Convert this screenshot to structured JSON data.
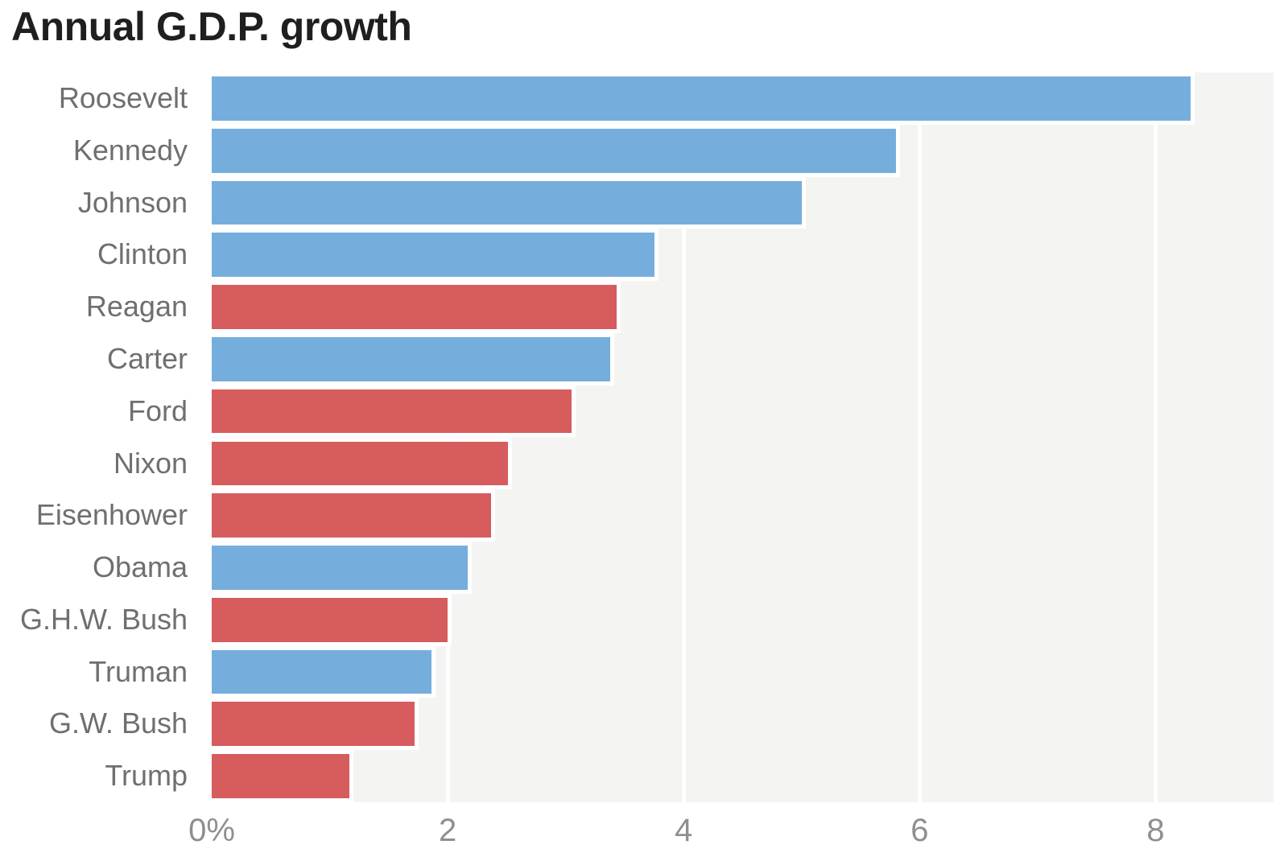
{
  "chart_data": {
    "type": "bar",
    "orientation": "horizontal",
    "title": "Annual G.D.P. growth",
    "value_unit": "percent (average annual G.D.P. growth)",
    "categories": [
      "Roosevelt",
      "Kennedy",
      "Johnson",
      "Clinton",
      "Reagan",
      "Carter",
      "Ford",
      "Nixon",
      "Eisenhower",
      "Obama",
      "G.H.W. Bush",
      "Truman",
      "G.W. Bush",
      "Trump"
    ],
    "values": [
      8.3,
      5.8,
      5.0,
      3.75,
      3.43,
      3.38,
      3.05,
      2.51,
      2.37,
      2.17,
      2.0,
      1.86,
      1.72,
      1.17
    ],
    "parties": [
      "D",
      "D",
      "D",
      "D",
      "R",
      "D",
      "R",
      "R",
      "R",
      "D",
      "R",
      "D",
      "R",
      "R"
    ],
    "party_colors": {
      "D": "#75aedd",
      "R": "#d65c5e"
    },
    "xlim": [
      0,
      9
    ],
    "x_ticks": [
      0,
      2,
      4,
      6,
      8
    ],
    "x_tick_labels": [
      "0%",
      "2",
      "4",
      "6",
      "8"
    ],
    "legend": "none",
    "grid": "vertical white gridlines on light gray panel",
    "panel_background": "#f4f4f3",
    "gridline_color": "#ffffff",
    "title_color": "#1f1f1f",
    "label_color": "#6f6f6f",
    "tick_color": "#8f8f8f"
  }
}
